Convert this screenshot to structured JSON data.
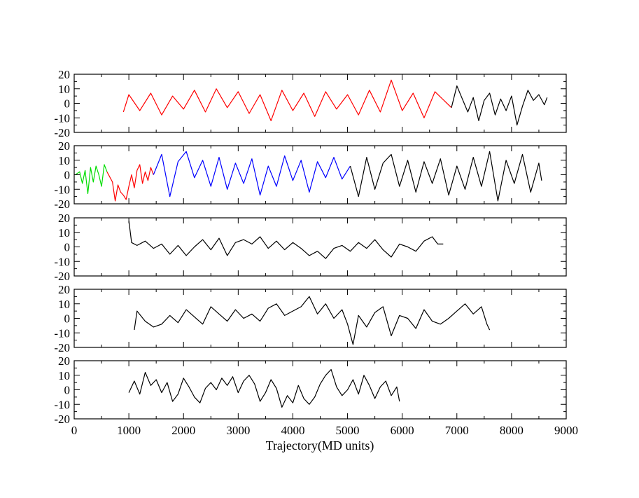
{
  "xlabel": "Trajectory(MD units)",
  "chart_data": {
    "type": "line",
    "xlabel": "Trajectory(MD units)",
    "xlim": [
      0,
      9000
    ],
    "xticks": [
      "0",
      "1000",
      "2000",
      "3000",
      "4000",
      "5000",
      "6000",
      "7000",
      "8000",
      "9000"
    ],
    "grid": false,
    "panels": [
      {
        "ylim": [
          -20,
          20
        ],
        "yticks": [
          "20",
          "10",
          "0",
          "-10",
          "-20"
        ],
        "series": [
          {
            "color": "#ff0000",
            "x": [
              900,
              1000,
              1200,
              1400,
              1600,
              1800,
              2000,
              2200,
              2400,
              2600,
              2800,
              3000,
              3200,
              3400,
              3600,
              3800,
              4000,
              4200,
              4400,
              4600,
              4800,
              5000,
              5200,
              5400,
              5600,
              5800,
              6000,
              6200,
              6400,
              6600,
              6900
            ],
            "y": [
              -6,
              6,
              -5,
              7,
              -8,
              5,
              -4,
              9,
              -6,
              10,
              -3,
              8,
              -7,
              6,
              -12,
              9,
              -5,
              7,
              -9,
              8,
              -4,
              6,
              -8,
              9,
              -6,
              16,
              -5,
              7,
              -10,
              8,
              -3
            ]
          },
          {
            "color": "#000000",
            "x": [
              6900,
              7000,
              7100,
              7200,
              7300,
              7400,
              7500,
              7600,
              7700,
              7800,
              7900,
              8000,
              8100,
              8200,
              8300,
              8400,
              8500,
              8600,
              8650
            ],
            "y": [
              -3,
              12,
              3,
              -6,
              4,
              -12,
              2,
              7,
              -8,
              3,
              -5,
              5,
              -15,
              -2,
              9,
              2,
              6,
              -1,
              4
            ]
          }
        ]
      },
      {
        "ylim": [
          -20,
          20
        ],
        "yticks": [
          "20",
          "10",
          "0",
          "-10",
          "-20"
        ],
        "series": [
          {
            "color": "#00dd00",
            "x": [
              20,
              100,
              150,
              200,
              250,
              300,
              350,
              400,
              450,
              500,
              550,
              600
            ],
            "y": [
              0,
              2,
              -6,
              3,
              -13,
              5,
              -5,
              6,
              0,
              -8,
              7,
              2
            ]
          },
          {
            "color": "#ff0000",
            "x": [
              600,
              700,
              750,
              800,
              850,
              900,
              950,
              1000,
              1050,
              1100,
              1150,
              1200,
              1250,
              1300,
              1350,
              1400,
              1450
            ],
            "y": [
              2,
              -5,
              -18,
              -7,
              -12,
              -14,
              -17,
              -8,
              0,
              -9,
              3,
              7,
              -6,
              2,
              -4,
              5,
              0
            ]
          },
          {
            "color": "#0000ff",
            "x": [
              1450,
              1600,
              1750,
              1900,
              2050,
              2200,
              2350,
              2500,
              2650,
              2800,
              2950,
              3100,
              3250,
              3400,
              3550,
              3700,
              3850,
              4000,
              4150,
              4300,
              4450,
              4600,
              4750,
              4900,
              5050
            ],
            "y": [
              0,
              14,
              -15,
              9,
              16,
              -2,
              10,
              -8,
              12,
              -10,
              8,
              -6,
              11,
              -14,
              6,
              -8,
              13,
              -4,
              10,
              -12,
              9,
              -2,
              12,
              -3,
              6
            ]
          },
          {
            "color": "#000000",
            "x": [
              5050,
              5200,
              5350,
              5500,
              5650,
              5800,
              5950,
              6100,
              6250,
              6400,
              6550,
              6700,
              6850,
              7000,
              7150,
              7300,
              7450,
              7600,
              7750,
              7900,
              8050,
              8200,
              8350,
              8500,
              8550
            ],
            "y": [
              6,
              -15,
              12,
              -10,
              8,
              14,
              -8,
              10,
              -12,
              9,
              -6,
              11,
              -14,
              6,
              -10,
              12,
              -8,
              16,
              -18,
              10,
              -6,
              14,
              -12,
              8,
              -4
            ]
          }
        ]
      },
      {
        "ylim": [
          -20,
          20
        ],
        "yticks": [
          "20",
          "10",
          "0",
          "-10",
          "-20"
        ],
        "series": [
          {
            "color": "#000000",
            "x": [
              1000,
              1050,
              1150,
              1300,
              1450,
              1600,
              1750,
              1900,
              2050,
              2200,
              2350,
              2500,
              2650,
              2800,
              2950,
              3100,
              3250,
              3400,
              3550,
              3700,
              3850,
              4000,
              4150,
              4300,
              4450,
              4600,
              4750,
              4900,
              5050,
              5200,
              5350,
              5500,
              5650,
              5800,
              5950,
              6100,
              6250,
              6400,
              6550,
              6650,
              6750
            ],
            "y": [
              18,
              3,
              1,
              4,
              -1,
              2,
              -5,
              1,
              -6,
              0,
              5,
              -2,
              6,
              -6,
              3,
              5,
              2,
              7,
              -1,
              4,
              -2,
              3,
              -1,
              -6,
              -3,
              -8,
              -1,
              1,
              -3,
              3,
              -1,
              5,
              -2,
              -7,
              2,
              0,
              -3,
              4,
              7,
              2,
              2
            ]
          }
        ]
      },
      {
        "ylim": [
          -20,
          20
        ],
        "yticks": [
          "20",
          "10",
          "0",
          "-10",
          "-20"
        ],
        "series": [
          {
            "color": "#000000",
            "x": [
              1100,
              1150,
              1300,
              1450,
              1600,
              1750,
              1900,
              2050,
              2200,
              2350,
              2500,
              2650,
              2800,
              2950,
              3100,
              3250,
              3400,
              3550,
              3700,
              3850,
              4000,
              4150,
              4300,
              4450,
              4600,
              4750,
              4900,
              5000,
              5100,
              5200,
              5350,
              5500,
              5650,
              5800,
              5950,
              6100,
              6250,
              6400,
              6550,
              6700,
              6850,
              7000,
              7150,
              7300,
              7450,
              7550,
              7600
            ],
            "y": [
              -8,
              5,
              -2,
              -6,
              -4,
              2,
              -3,
              6,
              1,
              -4,
              8,
              3,
              -2,
              6,
              0,
              3,
              -2,
              7,
              10,
              2,
              5,
              8,
              15,
              3,
              10,
              0,
              6,
              -4,
              -18,
              2,
              -6,
              4,
              8,
              -12,
              2,
              0,
              -7,
              6,
              -2,
              -4,
              0,
              5,
              10,
              3,
              8,
              -4,
              -8
            ]
          }
        ]
      },
      {
        "ylim": [
          -20,
          20
        ],
        "yticks": [
          "20",
          "10",
          "0",
          "-10",
          "-20"
        ],
        "series": [
          {
            "color": "#000000",
            "x": [
              1000,
              1100,
              1200,
              1300,
              1400,
              1500,
              1600,
              1700,
              1800,
              1900,
              2000,
              2100,
              2200,
              2300,
              2400,
              2500,
              2600,
              2700,
              2800,
              2900,
              3000,
              3100,
              3200,
              3300,
              3400,
              3500,
              3600,
              3700,
              3800,
              3900,
              4000,
              4100,
              4200,
              4300,
              4400,
              4500,
              4600,
              4700,
              4800,
              4900,
              5000,
              5100,
              5200,
              5300,
              5400,
              5500,
              5600,
              5700,
              5800,
              5900,
              5950
            ],
            "y": [
              -2,
              6,
              -3,
              12,
              3,
              7,
              -2,
              5,
              -8,
              -3,
              8,
              2,
              -5,
              -9,
              1,
              5,
              0,
              8,
              3,
              9,
              -2,
              6,
              10,
              4,
              -8,
              -2,
              7,
              1,
              -12,
              -4,
              -9,
              3,
              -6,
              -10,
              -5,
              4,
              10,
              14,
              2,
              -4,
              0,
              7,
              -3,
              10,
              3,
              -6,
              2,
              6,
              -4,
              2,
              -8
            ]
          }
        ]
      }
    ]
  }
}
